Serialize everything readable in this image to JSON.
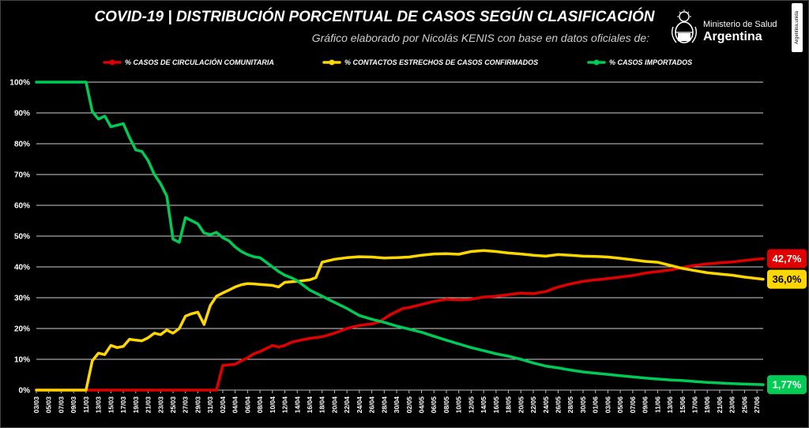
{
  "title": "COVID-19  |  DISTRIBUCIÓN PORCENTUAL DE CASOS SEGÚN CLASIFICACIÓN",
  "subtitle": "Gráfico elaborado por Nicolás KENIS con base en datos oficiales de:",
  "logo": {
    "line1": "Ministerio de Salud",
    "line2": "Argentina",
    "icon": "argentina-coat-of-arms-icon"
  },
  "side_badge": "Argentina.unida",
  "chart_data": {
    "type": "line",
    "title": "COVID-19  |  DISTRIBUCIÓN PORCENTUAL DE CASOS SEGÚN CLASIFICACIÓN",
    "xlabel": "",
    "ylabel": "",
    "x_start": "03/03",
    "x_end": "28/06",
    "ylim": [
      0,
      100
    ],
    "y_ticks": [
      "0%",
      "10%",
      "20%",
      "30%",
      "40%",
      "50%",
      "60%",
      "70%",
      "80%",
      "90%",
      "100%"
    ],
    "x_ticks": [
      "03/03",
      "05/03",
      "07/03",
      "09/03",
      "11/03",
      "13/03",
      "15/03",
      "17/03",
      "19/03",
      "21/03",
      "23/03",
      "25/03",
      "27/03",
      "29/03",
      "31/03",
      "02/04",
      "04/04",
      "06/04",
      "08/04",
      "10/04",
      "12/04",
      "14/04",
      "16/04",
      "18/04",
      "20/04",
      "22/04",
      "24/04",
      "26/04",
      "28/04",
      "30/04",
      "02/05",
      "04/05",
      "06/05",
      "08/05",
      "10/05",
      "12/05",
      "14/05",
      "16/05",
      "18/05",
      "20/05",
      "22/05",
      "24/05",
      "26/05",
      "28/05",
      "30/05",
      "01/06",
      "03/06",
      "05/06",
      "07/06",
      "09/06",
      "11/06",
      "13/06",
      "15/06",
      "17/06",
      "19/06",
      "21/06",
      "23/06",
      "25/06",
      "27/06"
    ],
    "grid": true,
    "legend_position": "top",
    "series": [
      {
        "name": "% CASOS DE CIRCULACIÓN COMUNITARIA",
        "color": "#e00000",
        "end_label": "42,7%",
        "points": [
          [
            "03/03",
            0
          ],
          [
            "31/03",
            0
          ],
          [
            "01/04",
            0
          ],
          [
            "02/04",
            8
          ],
          [
            "03/04",
            8.2
          ],
          [
            "04/04",
            8.4
          ],
          [
            "05/04",
            9.5
          ],
          [
            "06/04",
            10.5
          ],
          [
            "07/04",
            11.8
          ],
          [
            "08/04",
            12.5
          ],
          [
            "09/04",
            13.5
          ],
          [
            "10/04",
            14.5
          ],
          [
            "11/04",
            14
          ],
          [
            "12/04",
            14.5
          ],
          [
            "13/04",
            15.5
          ],
          [
            "14/04",
            16
          ],
          [
            "16/04",
            16.8
          ],
          [
            "18/04",
            17.3
          ],
          [
            "20/04",
            18.5
          ],
          [
            "22/04",
            20
          ],
          [
            "24/04",
            21
          ],
          [
            "26/04",
            21.5
          ],
          [
            "27/04",
            22
          ],
          [
            "28/04",
            23.2
          ],
          [
            "29/04",
            24.5
          ],
          [
            "30/04",
            25.5
          ],
          [
            "01/05",
            26.5
          ],
          [
            "02/05",
            26.8
          ],
          [
            "04/05",
            27.8
          ],
          [
            "06/05",
            28.8
          ],
          [
            "08/05",
            29.5
          ],
          [
            "10/05",
            29.3
          ],
          [
            "12/05",
            29.5
          ],
          [
            "14/05",
            30.2
          ],
          [
            "16/05",
            30.5
          ],
          [
            "18/05",
            31
          ],
          [
            "20/05",
            31.5
          ],
          [
            "22/05",
            31.3
          ],
          [
            "24/05",
            32
          ],
          [
            "26/05",
            33.5
          ],
          [
            "28/05",
            34.5
          ],
          [
            "30/05",
            35.3
          ],
          [
            "01/06",
            35.8
          ],
          [
            "03/06",
            36.2
          ],
          [
            "05/06",
            36.7
          ],
          [
            "07/06",
            37.2
          ],
          [
            "09/06",
            38
          ],
          [
            "11/06",
            38.5
          ],
          [
            "13/06",
            39
          ],
          [
            "15/06",
            39.8
          ],
          [
            "17/06",
            40.5
          ],
          [
            "19/06",
            41
          ],
          [
            "21/06",
            41.3
          ],
          [
            "23/06",
            41.6
          ],
          [
            "25/06",
            42.1
          ],
          [
            "28/06",
            42.7
          ]
        ]
      },
      {
        "name": "% CONTACTOS ESTRECHOS DE CASOS CONFIRMADOS",
        "color": "#ffd700",
        "end_label": "36,0%",
        "points": [
          [
            "03/03",
            0
          ],
          [
            "11/03",
            0
          ],
          [
            "12/03",
            9.5
          ],
          [
            "13/03",
            12
          ],
          [
            "14/03",
            11.5
          ],
          [
            "15/03",
            14.5
          ],
          [
            "16/03",
            13.8
          ],
          [
            "17/03",
            14.2
          ],
          [
            "18/03",
            16.5
          ],
          [
            "19/03",
            16.2
          ],
          [
            "20/03",
            16
          ],
          [
            "21/03",
            17
          ],
          [
            "22/03",
            18.5
          ],
          [
            "23/03",
            18
          ],
          [
            "24/03",
            19.5
          ],
          [
            "25/03",
            18.5
          ],
          [
            "26/03",
            20
          ],
          [
            "27/03",
            24
          ],
          [
            "28/03",
            24.8
          ],
          [
            "29/03",
            25.3
          ],
          [
            "30/03",
            21.3
          ],
          [
            "31/03",
            27.5
          ],
          [
            "01/04",
            30.5
          ],
          [
            "02/04",
            31.5
          ],
          [
            "03/04",
            32.5
          ],
          [
            "04/04",
            33.5
          ],
          [
            "05/04",
            34.2
          ],
          [
            "06/04",
            34.6
          ],
          [
            "07/04",
            34.5
          ],
          [
            "08/04",
            34.3
          ],
          [
            "10/04",
            34
          ],
          [
            "11/04",
            33.5
          ],
          [
            "12/04",
            35
          ],
          [
            "14/04",
            35.3
          ],
          [
            "16/04",
            35.8
          ],
          [
            "17/04",
            36.5
          ],
          [
            "18/04",
            41.5
          ],
          [
            "20/04",
            42.5
          ],
          [
            "22/04",
            43
          ],
          [
            "24/04",
            43.3
          ],
          [
            "26/04",
            43.2
          ],
          [
            "28/04",
            42.9
          ],
          [
            "30/04",
            43
          ],
          [
            "02/05",
            43.2
          ],
          [
            "04/05",
            43.8
          ],
          [
            "06/05",
            44.2
          ],
          [
            "08/05",
            44.3
          ],
          [
            "10/05",
            44.1
          ],
          [
            "12/05",
            45
          ],
          [
            "14/05",
            45.3
          ],
          [
            "16/05",
            45
          ],
          [
            "18/05",
            44.5
          ],
          [
            "20/05",
            44.2
          ],
          [
            "22/05",
            43.8
          ],
          [
            "24/05",
            43.5
          ],
          [
            "26/05",
            44
          ],
          [
            "28/05",
            43.8
          ],
          [
            "30/05",
            43.5
          ],
          [
            "01/06",
            43.4
          ],
          [
            "03/06",
            43.2
          ],
          [
            "05/06",
            42.8
          ],
          [
            "07/06",
            42.3
          ],
          [
            "09/06",
            41.8
          ],
          [
            "11/06",
            41.5
          ],
          [
            "13/06",
            40.5
          ],
          [
            "15/06",
            39.5
          ],
          [
            "17/06",
            38.8
          ],
          [
            "19/06",
            38.1
          ],
          [
            "21/06",
            37.7
          ],
          [
            "23/06",
            37.3
          ],
          [
            "25/06",
            36.7
          ],
          [
            "28/06",
            36
          ]
        ]
      },
      {
        "name": "% CASOS IMPORTADOS",
        "color": "#00cc55",
        "end_label": "1,77%",
        "points": [
          [
            "03/03",
            100
          ],
          [
            "11/03",
            100
          ],
          [
            "12/03",
            90.5
          ],
          [
            "13/03",
            88
          ],
          [
            "14/03",
            89
          ],
          [
            "15/03",
            85.5
          ],
          [
            "16/03",
            86
          ],
          [
            "17/03",
            86.5
          ],
          [
            "18/03",
            82
          ],
          [
            "19/03",
            78
          ],
          [
            "20/03",
            77.5
          ],
          [
            "21/03",
            74.5
          ],
          [
            "22/03",
            70
          ],
          [
            "23/03",
            67
          ],
          [
            "24/03",
            63
          ],
          [
            "25/03",
            49
          ],
          [
            "26/03",
            48
          ],
          [
            "27/03",
            56
          ],
          [
            "28/03",
            55
          ],
          [
            "29/03",
            54
          ],
          [
            "30/03",
            51
          ],
          [
            "31/03",
            50.5
          ],
          [
            "01/04",
            51.2
          ],
          [
            "02/04",
            49.5
          ],
          [
            "03/04",
            48.5
          ],
          [
            "04/04",
            46.5
          ],
          [
            "05/04",
            45
          ],
          [
            "06/04",
            44
          ],
          [
            "07/04",
            43.3
          ],
          [
            "08/04",
            43
          ],
          [
            "09/04",
            41.5
          ],
          [
            "10/04",
            40
          ],
          [
            "11/04",
            38.5
          ],
          [
            "12/04",
            37.3
          ],
          [
            "13/04",
            36.5
          ],
          [
            "14/04",
            35.5
          ],
          [
            "16/04",
            32.5
          ],
          [
            "18/04",
            30.5
          ],
          [
            "20/04",
            28.5
          ],
          [
            "22/04",
            26.5
          ],
          [
            "24/04",
            24.2
          ],
          [
            "26/04",
            23
          ],
          [
            "28/04",
            22
          ],
          [
            "30/04",
            20.8
          ],
          [
            "02/05",
            19.8
          ],
          [
            "04/05",
            18.8
          ],
          [
            "06/05",
            17.5
          ],
          [
            "08/05",
            16.2
          ],
          [
            "10/05",
            15
          ],
          [
            "12/05",
            13.8
          ],
          [
            "14/05",
            12.8
          ],
          [
            "16/05",
            11.8
          ],
          [
            "18/05",
            11
          ],
          [
            "20/05",
            10
          ],
          [
            "22/05",
            8.8
          ],
          [
            "24/05",
            7.8
          ],
          [
            "26/05",
            7.2
          ],
          [
            "28/05",
            6.5
          ],
          [
            "30/05",
            5.9
          ],
          [
            "01/06",
            5.5
          ],
          [
            "03/06",
            5.1
          ],
          [
            "05/06",
            4.7
          ],
          [
            "07/06",
            4.3
          ],
          [
            "09/06",
            3.9
          ],
          [
            "11/06",
            3.6
          ],
          [
            "13/06",
            3.3
          ],
          [
            "15/06",
            3.1
          ],
          [
            "17/06",
            2.8
          ],
          [
            "19/06",
            2.5
          ],
          [
            "21/06",
            2.3
          ],
          [
            "23/06",
            2.1
          ],
          [
            "25/06",
            1.95
          ],
          [
            "28/06",
            1.77
          ]
        ]
      }
    ]
  }
}
